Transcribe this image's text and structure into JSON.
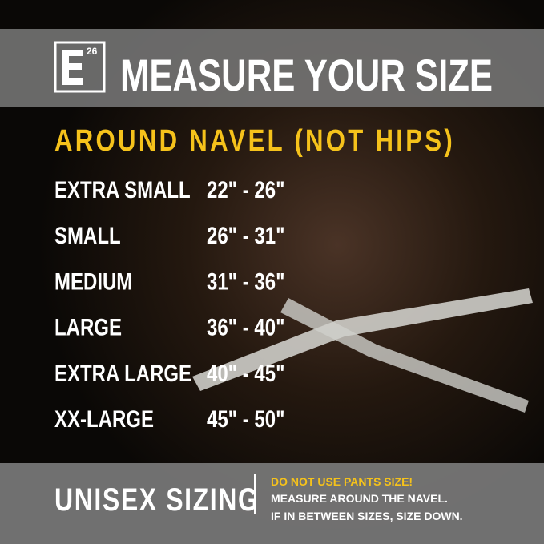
{
  "header": {
    "logo_number": "26",
    "title": "MEASURE YOUR SIZE"
  },
  "subtitle": "AROUND NAVEL (NOT HIPS)",
  "table": {
    "rows": [
      [
        "EXTRA SMALL",
        "22\" - 26\""
      ],
      [
        "SMALL",
        "26\" - 31\""
      ],
      [
        "MEDIUM",
        "31\" - 36\""
      ],
      [
        "LARGE",
        "36\" - 40\""
      ],
      [
        "EXTRA LARGE",
        "40\" - 45\""
      ],
      [
        "XX-LARGE",
        "45\" - 50\""
      ]
    ]
  },
  "footer": {
    "label": "UNISEX SIZING",
    "notes": [
      "DO NOT USE PANTS SIZE!",
      "MEASURE AROUND THE NAVEL.",
      "IF IN BETWEEN SIZES, SIZE DOWN."
    ]
  }
}
